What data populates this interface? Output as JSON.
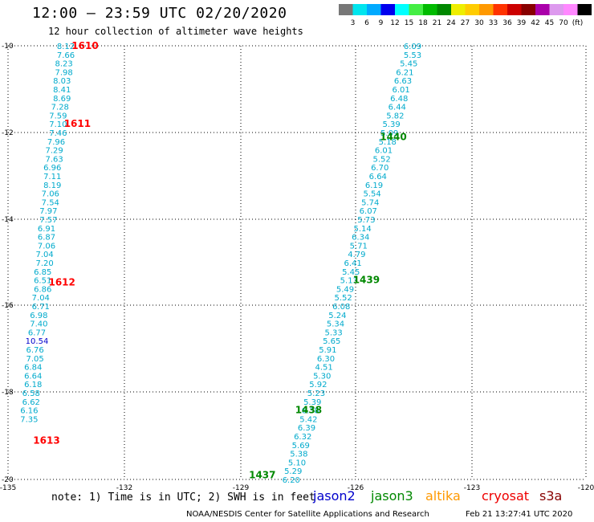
{
  "header": {
    "title": "12:00 — 23:59 UTC 02/20/2020",
    "subtitle": "12 hour collection of altimeter wave heights"
  },
  "colorbar": {
    "colors": [
      "#777777",
      "#00e5ee",
      "#00aaff",
      "#0000ee",
      "#00ffff",
      "#44ee44",
      "#00bb00",
      "#008800",
      "#eeee00",
      "#ffcc00",
      "#ff9900",
      "#ff3300",
      "#cc0000",
      "#880000",
      "#aa00aa",
      "#dd99ee",
      "#ff88ff",
      "#000000"
    ],
    "labels": [
      "3",
      "6",
      "9",
      "12",
      "15",
      "18",
      "21",
      "24",
      "27",
      "30",
      "33",
      "36",
      "39",
      "42",
      "45",
      "70",
      "(ft)"
    ]
  },
  "map": {
    "x_ticks": [
      "-135",
      "-132",
      "-129",
      "-126",
      "-123",
      "-120"
    ],
    "y_ticks": [
      "-10",
      "-12",
      "-14",
      "-16",
      "-18",
      "-20"
    ],
    "x_range": [
      -135,
      -120
    ],
    "y_range": [
      -10,
      -20
    ],
    "grid": "dotted"
  },
  "tracks": [
    {
      "satellite": "cryosat",
      "color_label": "#ff0000",
      "times": [
        {
          "label": "1610",
          "lon": -133.0,
          "lat": -10.0
        },
        {
          "label": "1611",
          "lon": -133.2,
          "lat": -11.8
        },
        {
          "label": "1612",
          "lon": -133.6,
          "lat": -15.45
        },
        {
          "label": "1613",
          "lon": -134.0,
          "lat": -19.1
        }
      ],
      "points": [
        {
          "v": "8.12",
          "lon": -133.5,
          "lat": -10.0
        },
        {
          "v": "7.66",
          "lon": -133.5,
          "lat": -10.2
        },
        {
          "v": "8.23",
          "lon": -133.55,
          "lat": -10.4
        },
        {
          "v": "7.98",
          "lon": -133.55,
          "lat": -10.6
        },
        {
          "v": "8.03",
          "lon": -133.6,
          "lat": -10.8
        },
        {
          "v": "8.41",
          "lon": -133.6,
          "lat": -11.0
        },
        {
          "v": "8.69",
          "lon": -133.6,
          "lat": -11.2
        },
        {
          "v": "7.28",
          "lon": -133.65,
          "lat": -11.4
        },
        {
          "v": "7.59",
          "lon": -133.7,
          "lat": -11.6
        },
        {
          "v": "7.10",
          "lon": -133.7,
          "lat": -11.8
        },
        {
          "v": "7.46",
          "lon": -133.7,
          "lat": -12.0
        },
        {
          "v": "7.96",
          "lon": -133.75,
          "lat": -12.2
        },
        {
          "v": "7.29",
          "lon": -133.8,
          "lat": -12.4
        },
        {
          "v": "7.63",
          "lon": -133.8,
          "lat": -12.6
        },
        {
          "v": "6.96",
          "lon": -133.85,
          "lat": -12.8
        },
        {
          "v": "7.11",
          "lon": -133.85,
          "lat": -13.0
        },
        {
          "v": "8.19",
          "lon": -133.85,
          "lat": -13.2
        },
        {
          "v": "7.06",
          "lon": -133.9,
          "lat": -13.4
        },
        {
          "v": "7.54",
          "lon": -133.9,
          "lat": -13.6
        },
        {
          "v": "7.97",
          "lon": -133.95,
          "lat": -13.8
        },
        {
          "v": "7.57",
          "lon": -133.95,
          "lat": -14.0
        },
        {
          "v": "6.91",
          "lon": -134.0,
          "lat": -14.2
        },
        {
          "v": "6.87",
          "lon": -134.0,
          "lat": -14.4
        },
        {
          "v": "7.06",
          "lon": -134.0,
          "lat": -14.6
        },
        {
          "v": "7.04",
          "lon": -134.05,
          "lat": -14.8
        },
        {
          "v": "7.20",
          "lon": -134.05,
          "lat": -15.0
        },
        {
          "v": "6.85",
          "lon": -134.1,
          "lat": -15.2
        },
        {
          "v": "6.51",
          "lon": -134.1,
          "lat": -15.4
        },
        {
          "v": "6.86",
          "lon": -134.1,
          "lat": -15.6
        },
        {
          "v": "7.04",
          "lon": -134.15,
          "lat": -15.8
        },
        {
          "v": "6.71",
          "lon": -134.15,
          "lat": -16.0
        },
        {
          "v": "6.98",
          "lon": -134.2,
          "lat": -16.2
        },
        {
          "v": "7.40",
          "lon": -134.2,
          "lat": -16.4
        },
        {
          "v": "6.77",
          "lon": -134.25,
          "lat": -16.6
        },
        {
          "v": "10.54",
          "lon": -134.25,
          "lat": -16.8,
          "c": "#0000cc"
        },
        {
          "v": "6.76",
          "lon": -134.3,
          "lat": -17.0
        },
        {
          "v": "7.05",
          "lon": -134.3,
          "lat": -17.2
        },
        {
          "v": "6.84",
          "lon": -134.35,
          "lat": -17.4
        },
        {
          "v": "6.64",
          "lon": -134.35,
          "lat": -17.6
        },
        {
          "v": "6.18",
          "lon": -134.35,
          "lat": -17.8
        },
        {
          "v": "6.58",
          "lon": -134.4,
          "lat": -18.0
        },
        {
          "v": "6.62",
          "lon": -134.4,
          "lat": -18.2
        },
        {
          "v": "6.16",
          "lon": -134.45,
          "lat": -18.4
        },
        {
          "v": "7.35",
          "lon": -134.45,
          "lat": -18.6
        }
      ]
    },
    {
      "satellite": "jason3",
      "color_label": "#008800",
      "times": [
        {
          "label": "1440",
          "lon": -125.0,
          "lat": -12.1
        },
        {
          "label": "1439",
          "lon": -125.7,
          "lat": -15.4
        },
        {
          "label": "1438",
          "lon": -127.2,
          "lat": -18.4
        },
        {
          "label": "1437",
          "lon": -128.4,
          "lat": -19.9
        }
      ],
      "points": [
        {
          "v": "6.09",
          "lon": -124.5,
          "lat": -10.0
        },
        {
          "v": "5.53",
          "lon": -124.5,
          "lat": -10.2
        },
        {
          "v": "5.45",
          "lon": -124.6,
          "lat": -10.4
        },
        {
          "v": "6.21",
          "lon": -124.7,
          "lat": -10.6
        },
        {
          "v": "6.63",
          "lon": -124.75,
          "lat": -10.8
        },
        {
          "v": "6.01",
          "lon": -124.8,
          "lat": -11.0
        },
        {
          "v": "6.48",
          "lon": -124.85,
          "lat": -11.2
        },
        {
          "v": "6.44",
          "lon": -124.9,
          "lat": -11.4
        },
        {
          "v": "5.82",
          "lon": -124.95,
          "lat": -11.6
        },
        {
          "v": "5.39",
          "lon": -125.05,
          "lat": -11.8
        },
        {
          "v": "5.09",
          "lon": -125.1,
          "lat": -12.0
        },
        {
          "v": "5.18",
          "lon": -125.15,
          "lat": -12.2
        },
        {
          "v": "6.01",
          "lon": -125.25,
          "lat": -12.4
        },
        {
          "v": "5.52",
          "lon": -125.3,
          "lat": -12.6
        },
        {
          "v": "6.70",
          "lon": -125.35,
          "lat": -12.8
        },
        {
          "v": "6.64",
          "lon": -125.4,
          "lat": -13.0
        },
        {
          "v": "6.19",
          "lon": -125.5,
          "lat": -13.2
        },
        {
          "v": "5.54",
          "lon": -125.55,
          "lat": -13.4
        },
        {
          "v": "5.74",
          "lon": -125.6,
          "lat": -13.6
        },
        {
          "v": "6.07",
          "lon": -125.65,
          "lat": -13.8
        },
        {
          "v": "5.73",
          "lon": -125.7,
          "lat": -14.0
        },
        {
          "v": "5.14",
          "lon": -125.8,
          "lat": -14.2
        },
        {
          "v": "6.34",
          "lon": -125.85,
          "lat": -14.4
        },
        {
          "v": "5.71",
          "lon": -125.9,
          "lat": -14.6
        },
        {
          "v": "4.79",
          "lon": -125.95,
          "lat": -14.8
        },
        {
          "v": "6.41",
          "lon": -126.05,
          "lat": -15.0
        },
        {
          "v": "5.45",
          "lon": -126.1,
          "lat": -15.2
        },
        {
          "v": "5.13",
          "lon": -126.15,
          "lat": -15.4
        },
        {
          "v": "5.49",
          "lon": -126.25,
          "lat": -15.6
        },
        {
          "v": "5.52",
          "lon": -126.3,
          "lat": -15.8
        },
        {
          "v": "6.08",
          "lon": -126.35,
          "lat": -16.0
        },
        {
          "v": "5.24",
          "lon": -126.45,
          "lat": -16.2
        },
        {
          "v": "5.34",
          "lon": -126.5,
          "lat": -16.4
        },
        {
          "v": "5.33",
          "lon": -126.55,
          "lat": -16.6
        },
        {
          "v": "5.65",
          "lon": -126.6,
          "lat": -16.8
        },
        {
          "v": "5.91",
          "lon": -126.7,
          "lat": -17.0
        },
        {
          "v": "6.30",
          "lon": -126.75,
          "lat": -17.2
        },
        {
          "v": "4.51",
          "lon": -126.8,
          "lat": -17.4
        },
        {
          "v": "5.30",
          "lon": -126.85,
          "lat": -17.6
        },
        {
          "v": "5.92",
          "lon": -126.95,
          "lat": -17.8
        },
        {
          "v": "5.23",
          "lon": -127.0,
          "lat": -18.0
        },
        {
          "v": "5.39",
          "lon": -127.1,
          "lat": -18.2
        },
        {
          "v": "6.38",
          "lon": -127.15,
          "lat": -18.4
        },
        {
          "v": "5.42",
          "lon": -127.2,
          "lat": -18.6
        },
        {
          "v": "6.39",
          "lon": -127.25,
          "lat": -18.8
        },
        {
          "v": "6.32",
          "lon": -127.35,
          "lat": -19.0
        },
        {
          "v": "5.69",
          "lon": -127.4,
          "lat": -19.2
        },
        {
          "v": "5.38",
          "lon": -127.45,
          "lat": -19.4
        },
        {
          "v": "5.10",
          "lon": -127.5,
          "lat": -19.6
        },
        {
          "v": "5.29",
          "lon": -127.6,
          "lat": -19.8
        },
        {
          "v": "6.20",
          "lon": -127.65,
          "lat": -20.0
        }
      ]
    }
  ],
  "footer": {
    "note": "note: 1) Time is in UTC; 2) SWH is in feet",
    "satellites": [
      {
        "name": "jason2",
        "color": "#0000cc"
      },
      {
        "name": "jason3",
        "color": "#008800"
      },
      {
        "name": "altika",
        "color": "#ff9900"
      },
      {
        "name": "cryosat",
        "color": "#ee0000"
      },
      {
        "name": "s3a",
        "color": "#880000"
      }
    ],
    "credit": "NOAA/NESDIS Center for Satellite Applications and Research",
    "timestamp": "Feb 21 13:27:41 UTC 2020"
  }
}
